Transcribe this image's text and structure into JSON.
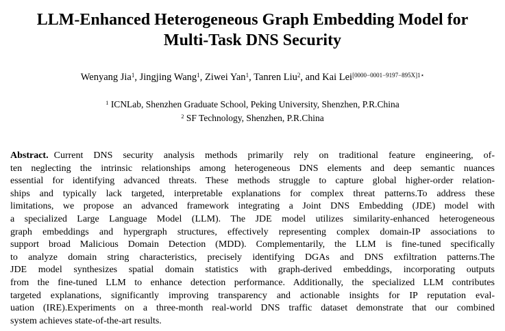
{
  "title": {
    "line1": "LLM-Enhanced Heterogeneous Graph Embedding Model for",
    "line2": "Multi-Task DNS Security"
  },
  "authors": [
    {
      "name": "Wenyang Jia",
      "sup": "1",
      "sep": ", "
    },
    {
      "name": "Jingjing Wang",
      "sup": "1",
      "sep": ", "
    },
    {
      "name": "Ziwei Yan",
      "sup": "1",
      "sep": ", "
    },
    {
      "name": "Tanren Liu",
      "sup": "2",
      "sep": ", and "
    },
    {
      "name": "Kai Lei",
      "sup": "[0000−0001−9197−895X]1⋆",
      "sep": ""
    }
  ],
  "affiliations": [
    {
      "sup": "1",
      "text": "ICNLab, Shenzhen Graduate School, Peking University, Shenzhen, P.R.China"
    },
    {
      "sup": "2",
      "text": "SF Technology, Shenzhen, P.R.China"
    }
  ],
  "abstract": {
    "label": "Abstract.",
    "lines": [
      "Current DNS security analysis methods primarily rely on traditional feature engineering, of-",
      "ten neglecting the intrinsic relationships among heterogeneous DNS elements and deep semantic nuances",
      "essential for identifying advanced threats. These methods struggle to capture global higher-order relation-",
      "ships and typically lack targeted, interpretable explanations for complex threat patterns.To address these",
      "limitations, we propose an advanced framework integrating a Joint DNS Embedding (JDE) model with",
      "a specialized Large Language Model (LLM). The JDE model utilizes similarity-enhanced heterogeneous",
      "graph embeddings and hypergraph structures, effectively representing complex domain-IP associations to",
      "support broad Malicious Domain Detection (MDD). Complementarily, the LLM is fine-tuned specifically",
      "to analyze domain string characteristics, precisely identifying DGAs and DNS exfiltration patterns.The",
      "JDE model synthesizes spatial domain statistics with graph-derived embeddings, incorporating outputs",
      "from the fine-tuned LLM to enhance detection performance. Additionally, the specialized LLM contributes",
      "targeted explanations, significantly improving transparency and actionable insights for IP reputation eval-",
      "uation (IRE).Experiments on a three-month real-world DNS traffic dataset demonstrate that our combined",
      "system achieves state-of-the-art results."
    ]
  }
}
